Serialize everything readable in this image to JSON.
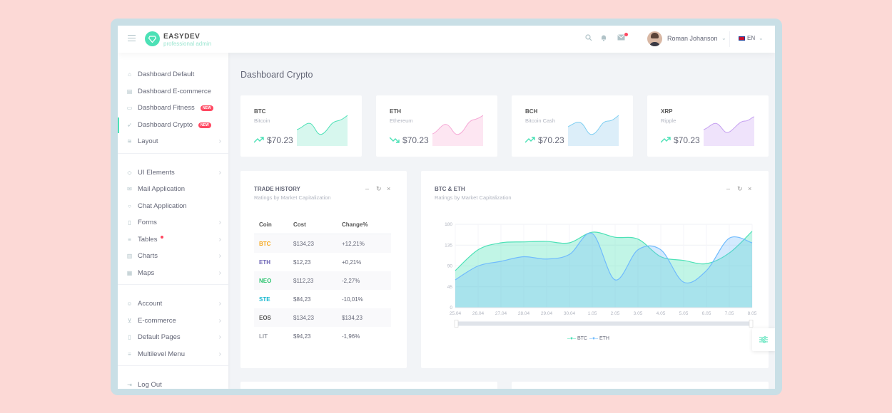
{
  "header": {
    "logo_title": "EASYDEV",
    "logo_subtitle": "professional admin",
    "user_name": "Roman Johanson",
    "language": "EN"
  },
  "sidebar": {
    "groups": [
      [
        {
          "label": "Dashboard Default",
          "icon": "home-icon"
        },
        {
          "label": "Dashboard E-commerce",
          "icon": "store-icon"
        },
        {
          "label": "Dashboard Fitness",
          "icon": "screen-icon",
          "badge": "NEW"
        },
        {
          "label": "Dashboard Crypto",
          "icon": "rocket-icon",
          "badge": "NEW",
          "active": true
        },
        {
          "label": "Layout",
          "icon": "layers-icon",
          "arrow": true
        }
      ],
      [
        {
          "label": "UI Elements",
          "icon": "diamond-icon",
          "arrow": true
        },
        {
          "label": "Mail Application",
          "icon": "envelope-icon"
        },
        {
          "label": "Chat Application",
          "icon": "bubble-icon"
        },
        {
          "label": "Forms",
          "icon": "file-icon",
          "arrow": true
        },
        {
          "label": "Tables",
          "icon": "list-icon",
          "arrow": true,
          "dot": true
        },
        {
          "label": "Charts",
          "icon": "chart-icon",
          "arrow": true
        },
        {
          "label": "Maps",
          "icon": "map-icon",
          "arrow": true
        }
      ],
      [
        {
          "label": "Account",
          "icon": "user-icon",
          "arrow": true
        },
        {
          "label": "E-commerce",
          "icon": "cart-icon",
          "arrow": true
        },
        {
          "label": "Default Pages",
          "icon": "page-icon",
          "arrow": true
        },
        {
          "label": "Multilevel Menu",
          "icon": "menu-icon",
          "arrow": true
        }
      ],
      [
        {
          "label": "Log Out",
          "icon": "exit-icon"
        }
      ]
    ]
  },
  "page": {
    "title": "Dashboard Crypto"
  },
  "coins": [
    {
      "symbol": "BTC",
      "name": "Bitcoin",
      "price": "$70.23",
      "trend": "up",
      "color": "#4ce1b6",
      "fill": "#d7f7ee"
    },
    {
      "symbol": "ETH",
      "name": "Ethereum",
      "price": "$70.23",
      "trend": "down",
      "color": "#f6a9d6",
      "fill": "#fde6f2"
    },
    {
      "symbol": "BCH",
      "name": "Bitcoin Cash",
      "price": "$70.23",
      "trend": "up",
      "color": "#7ecff2",
      "fill": "#dceef9"
    },
    {
      "symbol": "XRP",
      "name": "Ripple",
      "price": "$70.23",
      "trend": "up",
      "color": "#c59ff0",
      "fill": "#efe3fb"
    }
  ],
  "trade_history": {
    "title": "TRADE HISTORY",
    "subtitle": "Ratings by Market Capitalization",
    "columns": [
      "Coin",
      "Cost",
      "Change%"
    ],
    "rows": [
      {
        "coin": "BTC",
        "cost": "$134,23",
        "change": "+12,21%",
        "color": "#f6a81e"
      },
      {
        "coin": "ETH",
        "cost": "$12,23",
        "change": "+0,21%",
        "color": "#6c63b5"
      },
      {
        "coin": "NEO",
        "cost": "$112,23",
        "change": "-2,27%",
        "color": "#2bc46f"
      },
      {
        "coin": "STE",
        "cost": "$84,23",
        "change": "-10,01%",
        "color": "#17b8d0"
      },
      {
        "coin": "EOS",
        "cost": "$134,23",
        "change": "$134,23",
        "color": "#555555"
      },
      {
        "coin": "LIT",
        "cost": "$94,23",
        "change": "-1,96%",
        "color": "#9a9da6"
      }
    ]
  },
  "chart_panel": {
    "title": "BTC & ETH",
    "subtitle": "Ratings by Market Capitalization"
  },
  "chart_data": {
    "type": "area",
    "x": [
      "25.04",
      "26.04",
      "27.04",
      "28.04",
      "29.04",
      "30.04",
      "1.05",
      "2.05",
      "3.05",
      "4.05",
      "5.05",
      "6.05",
      "7.05",
      "8.05"
    ],
    "y_ticks": [
      0,
      45,
      90,
      135,
      180
    ],
    "ylim": [
      0,
      180
    ],
    "grid": true,
    "legend_position": "bottom-center",
    "series": [
      {
        "name": "BTC",
        "color": "#4ce1b6",
        "values": [
          80,
          125,
          140,
          142,
          143,
          140,
          163,
          152,
          148,
          110,
          102,
          95,
          118,
          165
        ]
      },
      {
        "name": "ETH",
        "color": "#70bbfd",
        "values": [
          60,
          90,
          100,
          110,
          105,
          115,
          160,
          60,
          125,
          125,
          55,
          80,
          150,
          140
        ]
      }
    ]
  }
}
